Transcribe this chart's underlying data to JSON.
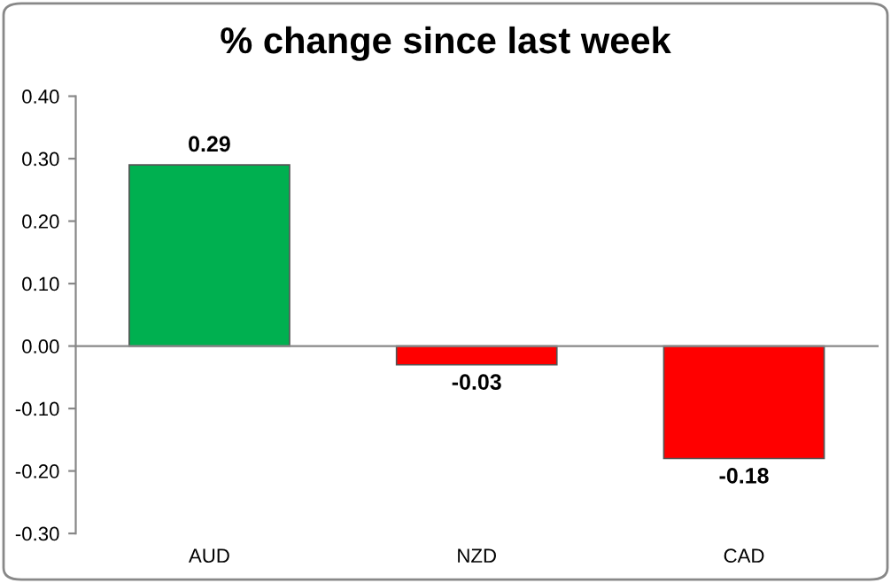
{
  "chart_data": {
    "type": "bar",
    "title": "% change since last week",
    "categories": [
      "AUD",
      "NZD",
      "CAD"
    ],
    "values": [
      0.29,
      -0.03,
      -0.18
    ],
    "colors": [
      "#00b050",
      "#ff0000",
      "#ff0000"
    ],
    "ylim": [
      -0.3,
      0.4
    ],
    "yticks": [
      {
        "value": -0.3,
        "label": "-0.30"
      },
      {
        "value": -0.2,
        "label": "-0.20"
      },
      {
        "value": -0.1,
        "label": "-0.10"
      },
      {
        "value": 0,
        "label": "0.00"
      },
      {
        "value": 0.1,
        "label": "0.10"
      },
      {
        "value": 0.2,
        "label": "0.20"
      },
      {
        "value": 0.3,
        "label": "0.30"
      },
      {
        "value": 0.4,
        "label": "0.40"
      }
    ],
    "value_labels": [
      "0.29",
      "-0.03",
      "-0.18"
    ],
    "legend": false
  }
}
